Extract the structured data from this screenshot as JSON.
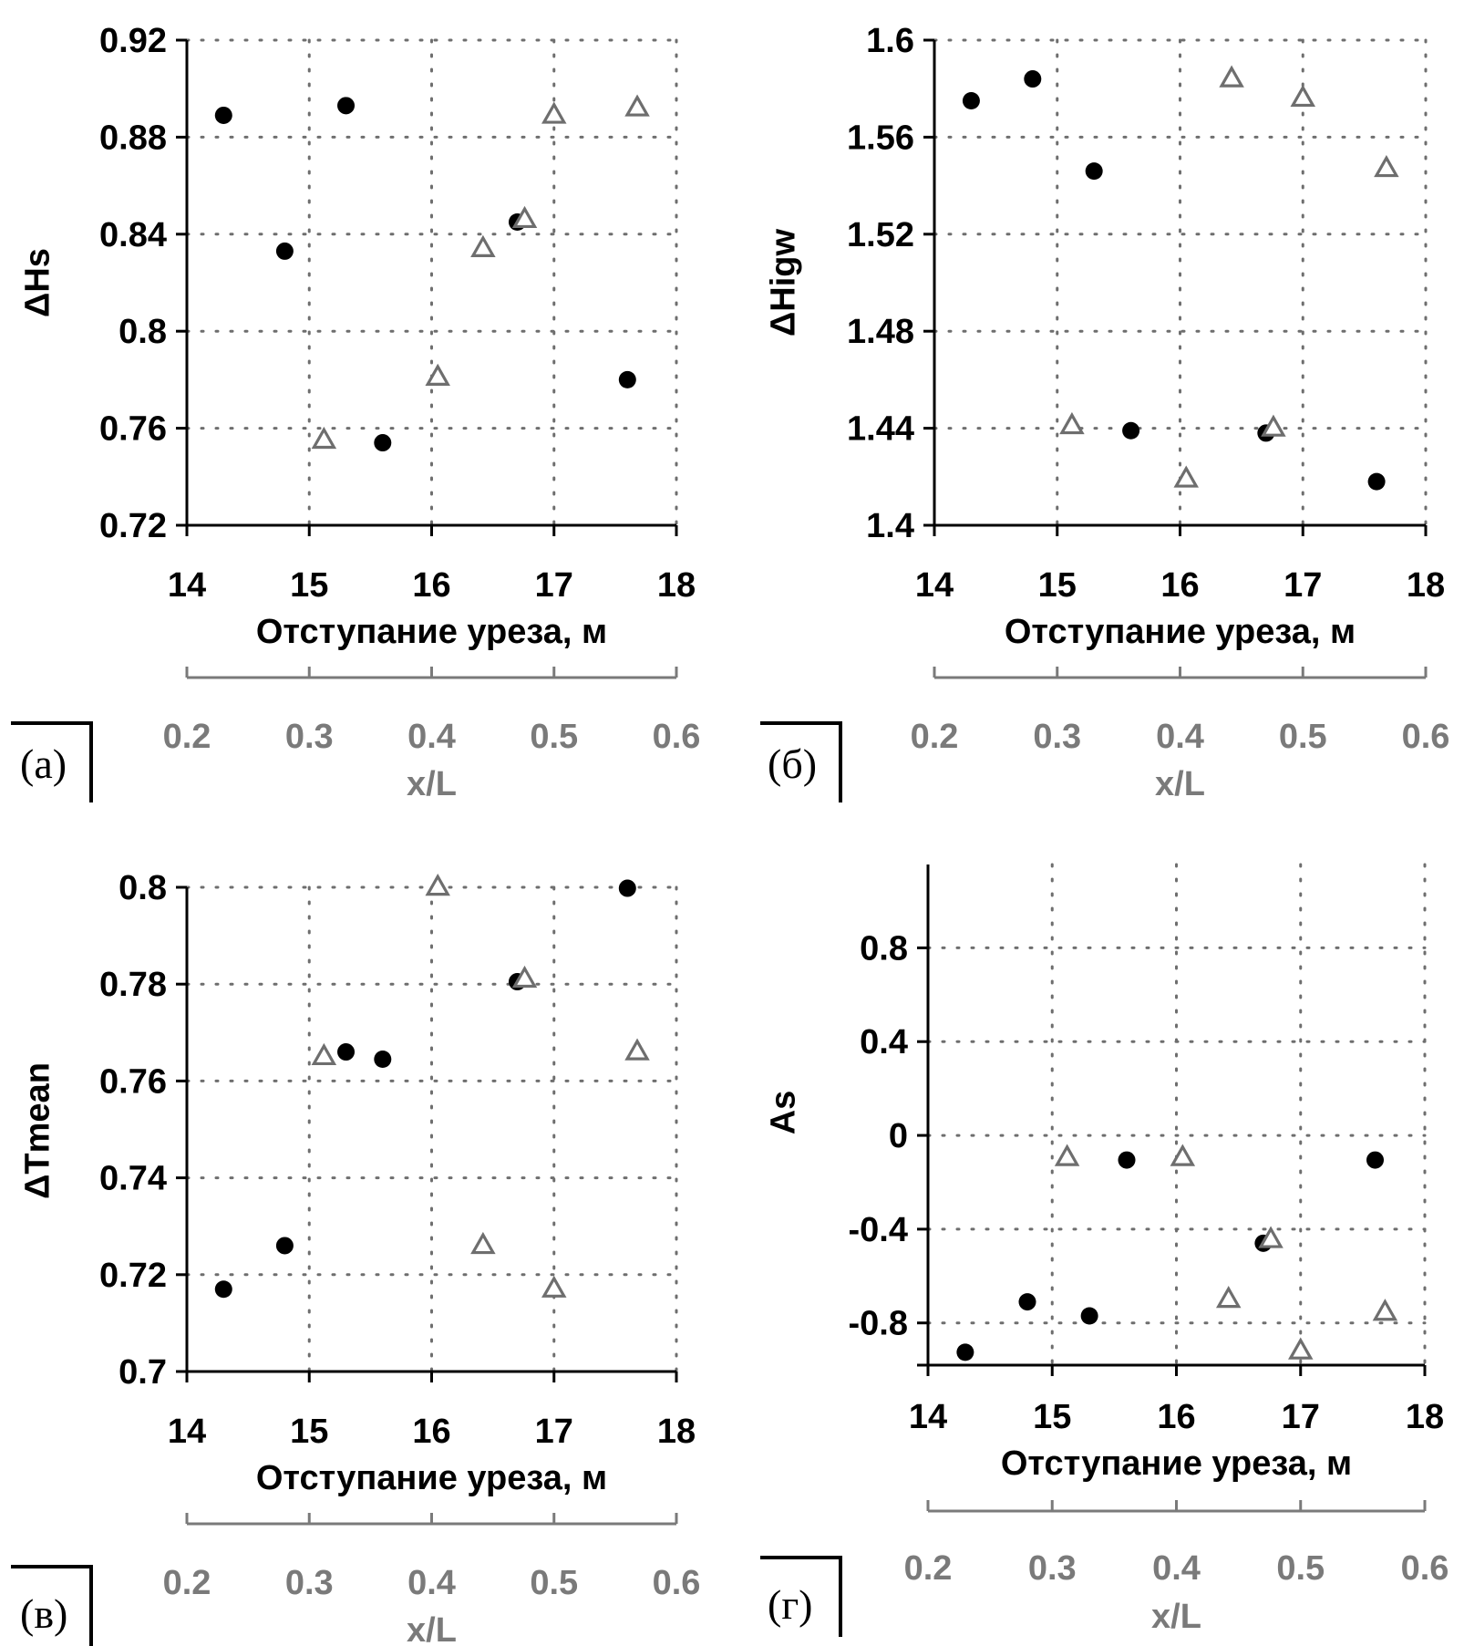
{
  "colors": {
    "axis": "#000000",
    "secondary_axis": "#7a7a7a",
    "grid": "#6e6e6e",
    "circle_series": "#000000",
    "triangle_series": "#6e6e6e"
  },
  "chart_data": [
    {
      "panel": "(а)",
      "type": "scatter",
      "xlabel": "Отступание уреза, м",
      "ylabel": "ΔHs",
      "xlim": [
        14,
        18
      ],
      "ylim": [
        0.72,
        0.92
      ],
      "xticks": [
        "14",
        "15",
        "16",
        "17",
        "18"
      ],
      "yticks": [
        "0.72",
        "0.76",
        "0.8",
        "0.84",
        "0.88",
        "0.92"
      ],
      "secondary_xlabel": "x/L",
      "secondary_xlim": [
        0.2,
        0.6
      ],
      "secondary_xticks": [
        "0.2",
        "0.3",
        "0.4",
        "0.5",
        "0.6"
      ],
      "grid": true,
      "series": [
        {
          "marker": "circle",
          "axis": "primary",
          "x": [
            14.3,
            14.8,
            15.3,
            15.6,
            16.7,
            17.6
          ],
          "y": [
            0.889,
            0.833,
            0.893,
            0.754,
            0.845,
            0.78
          ]
        },
        {
          "marker": "triangle",
          "axis": "secondary",
          "x": [
            0.312,
            0.405,
            0.442,
            0.476,
            0.5,
            0.568
          ],
          "y": [
            0.755,
            0.781,
            0.834,
            0.846,
            0.889,
            0.892
          ]
        }
      ]
    },
    {
      "panel": "(б)",
      "type": "scatter",
      "xlabel": "Отступание уреза, м",
      "ylabel": "ΔHigw",
      "xlim": [
        14,
        18
      ],
      "ylim": [
        1.4,
        1.6
      ],
      "xticks": [
        "14",
        "15",
        "16",
        "17",
        "18"
      ],
      "yticks": [
        "1.4",
        "1.44",
        "1.48",
        "1.52",
        "1.56",
        "1.6"
      ],
      "secondary_xlabel": "x/L",
      "secondary_xlim": [
        0.2,
        0.6
      ],
      "secondary_xticks": [
        "0.2",
        "0.3",
        "0.4",
        "0.5",
        "0.6"
      ],
      "grid": true,
      "series": [
        {
          "marker": "circle",
          "axis": "primary",
          "x": [
            14.3,
            14.8,
            15.3,
            15.6,
            16.7,
            17.6
          ],
          "y": [
            1.575,
            1.584,
            1.546,
            1.439,
            1.438,
            1.418
          ]
        },
        {
          "marker": "triangle",
          "axis": "secondary",
          "x": [
            0.312,
            0.405,
            0.442,
            0.476,
            0.5,
            0.568
          ],
          "y": [
            1.441,
            1.419,
            1.584,
            1.44,
            1.576,
            1.547
          ]
        }
      ]
    },
    {
      "panel": "(в)",
      "type": "scatter",
      "xlabel": "Отступание уреза, м",
      "ylabel": "ΔTmean",
      "xlim": [
        14,
        18
      ],
      "ylim": [
        0.7,
        0.8
      ],
      "xticks": [
        "14",
        "15",
        "16",
        "17",
        "18"
      ],
      "yticks": [
        "0.7",
        "0.72",
        "0.74",
        "0.76",
        "0.78",
        "0.8"
      ],
      "secondary_xlabel": "x/L",
      "secondary_xlim": [
        0.2,
        0.6
      ],
      "secondary_xticks": [
        "0.2",
        "0.3",
        "0.4",
        "0.5",
        "0.6"
      ],
      "grid": true,
      "series": [
        {
          "marker": "circle",
          "axis": "primary",
          "x": [
            14.3,
            14.8,
            15.3,
            15.6,
            16.7,
            17.6
          ],
          "y": [
            0.717,
            0.726,
            0.766,
            0.7645,
            0.7805,
            0.7998
          ]
        },
        {
          "marker": "triangle",
          "axis": "secondary",
          "x": [
            0.312,
            0.405,
            0.442,
            0.476,
            0.5,
            0.568
          ],
          "y": [
            0.765,
            0.8,
            0.726,
            0.781,
            0.717,
            0.766
          ]
        }
      ]
    },
    {
      "panel": "(г)",
      "type": "scatter",
      "xlabel": "Отступание уреза, м",
      "ylabel": "As",
      "xlim": [
        14,
        18
      ],
      "ylim": [
        -0.98,
        1.0
      ],
      "xticks": [
        "14",
        "15",
        "16",
        "17",
        "18"
      ],
      "yticks": [
        "-0.8",
        "-0.4",
        "0",
        "0.4",
        "0.8"
      ],
      "ytick_values": [
        -0.8,
        -0.4,
        0,
        0.4,
        0.8
      ],
      "secondary_xlabel": "x/L",
      "secondary_xlim": [
        0.2,
        0.6
      ],
      "secondary_xticks": [
        "0.2",
        "0.3",
        "0.4",
        "0.5",
        "0.6"
      ],
      "grid": true,
      "series": [
        {
          "marker": "circle",
          "axis": "primary",
          "x": [
            14.3,
            14.8,
            15.3,
            15.6,
            16.7,
            17.6
          ],
          "y": [
            -0.925,
            -0.71,
            -0.77,
            -0.105,
            -0.46,
            -0.105
          ]
        },
        {
          "marker": "triangle",
          "axis": "secondary",
          "x": [
            0.312,
            0.405,
            0.442,
            0.476,
            0.5,
            0.568
          ],
          "y": [
            -0.095,
            -0.095,
            -0.7,
            -0.445,
            -0.92,
            -0.755
          ]
        }
      ]
    }
  ]
}
